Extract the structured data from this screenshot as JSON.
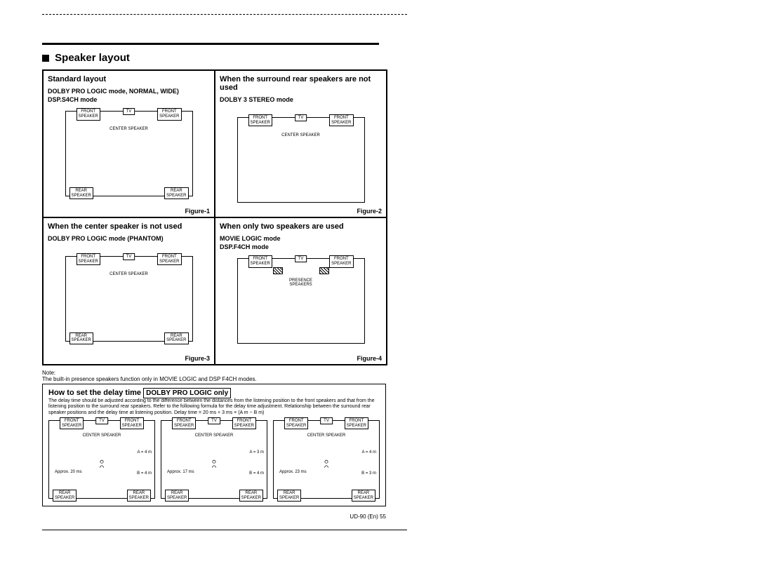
{
  "section_title": "Speaker layout",
  "cells": [
    {
      "title": "Standard layout",
      "sub": "DOLBY PRO LOGIC mode, NORMAL, WIDE)\nDSP.S4CH mode",
      "fig": "Figure-1",
      "front_l": "FRONT\nSPEAKER",
      "tv": "TV",
      "front_r": "FRONT\nSPEAKER",
      "center": "CENTER SPEAKER",
      "rear_l": "REAR\nSPEAKER",
      "rear_r": "REAR\nSPEAKER",
      "show_rear": true,
      "show_center_box": false,
      "show_hatch": false
    },
    {
      "title": "When the surround rear speakers are not used",
      "sub": "DOLBY 3 STEREO mode",
      "fig": "Figure-2",
      "front_l": "FRONT\nSPEAKER",
      "tv": "TV",
      "front_r": "FRONT\nSPEAKER",
      "center": "CENTER SPEAKER",
      "show_rear": false,
      "show_center_box": false,
      "show_hatch": false
    },
    {
      "title": "When the center speaker is not used",
      "sub": "DOLBY PRO LOGIC mode (PHANTOM)",
      "fig": "Figure-3",
      "front_l": "FRONT\nSPEAKER",
      "tv": "TV",
      "front_r": "FRONT\nSPEAKER",
      "center": "CENTER SPEAKER",
      "rear_l": "REAR\nSPEAKER",
      "rear_r": "REAR\nSPEAKER",
      "show_rear": true,
      "show_center_box": true,
      "show_hatch": false
    },
    {
      "title": "When only two speakers are used",
      "sub": "MOVIE LOGIC mode\nDSP.F4CH mode",
      "fig": "Figure-4",
      "front_l": "FRONT\nSPEAKER",
      "tv": "TV",
      "front_r": "FRONT\nSPEAKER",
      "center": "PRESENCE\nSPEAKERS",
      "show_rear": false,
      "show_center_box": false,
      "show_hatch": true
    }
  ],
  "note_label": "Note:",
  "note_text": "The built-in presence speakers function only in MOVIE LOGIC and DSP F4CH modes.",
  "delay": {
    "title_prefix": "How to set the delay time",
    "title_box": "DOLBY PRO LOGIC only",
    "desc": "The delay time should be adjusted according to the difference between the distances from the listening position to the front speakers and that from the listening position to the surround rear speakers. Refer to the following formula for the delay time adjustment.\nRelationship between the surround rear speaker positions and the delay time at listening position.\nDelay time = 20 ms + 3 ms × (A m − B m)",
    "rooms": [
      {
        "A": "A = 4 m",
        "B": "B = 4 m",
        "approx": "Approx. 20 ms"
      },
      {
        "A": "A = 3 m",
        "B": "B = 4 m",
        "approx": "Approx. 17 ms"
      },
      {
        "A": "A = 4 m",
        "B": "B = 3 m",
        "approx": "Approx. 23 ms"
      }
    ],
    "front_l": "FRONT\nSPEAKER",
    "tv": "TV",
    "front_r": "FRONT\nSPEAKER",
    "center": "CENTER SPEAKER",
    "rear_l": "REAR\nSPEAKER",
    "rear_r": "REAR\nSPEAKER"
  },
  "footer": "UD-90 (En)  55"
}
